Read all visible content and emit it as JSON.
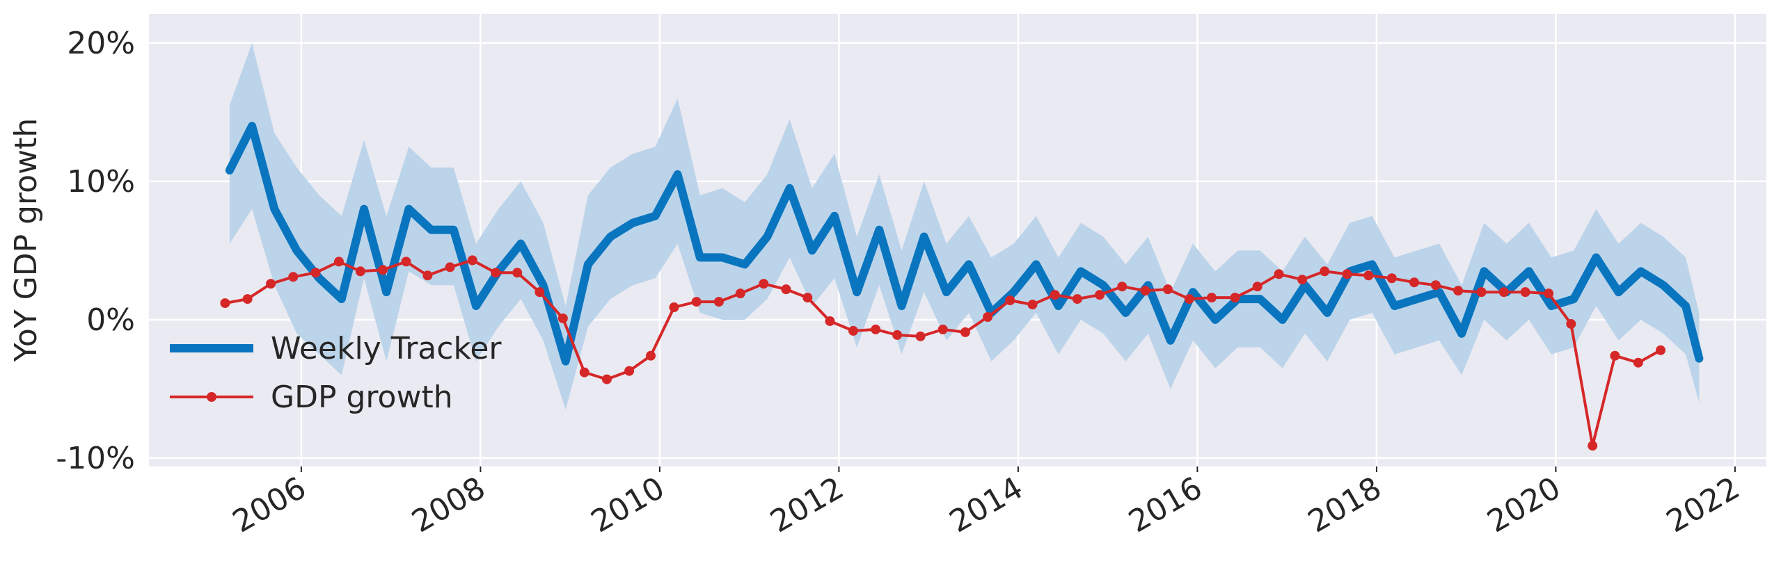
{
  "chart_data": {
    "type": "line",
    "ylabel": "YoY GDP growth",
    "xlim": [
      2004.3,
      2022.35
    ],
    "xticks": [
      2006,
      2008,
      2010,
      2012,
      2014,
      2016,
      2018,
      2020,
      2022
    ],
    "ylim": [
      -10.6,
      22.1
    ],
    "yticks": [
      {
        "value": -10,
        "label": "-10%"
      },
      {
        "value": 0,
        "label": "0%"
      },
      {
        "value": 10,
        "label": "10%"
      },
      {
        "value": 20,
        "label": "20%"
      }
    ],
    "grid": true,
    "legend_loc": "lower left",
    "band_color": "#bcd4ea",
    "series": [
      {
        "name": "Weekly Tracker",
        "color": "#0a75bf",
        "markers": false,
        "x": [
          2005.2,
          2005.45,
          2005.7,
          2005.95,
          2006.2,
          2006.45,
          2006.7,
          2006.95,
          2007.2,
          2007.45,
          2007.7,
          2007.95,
          2008.2,
          2008.45,
          2008.7,
          2008.95,
          2009.2,
          2009.45,
          2009.7,
          2009.95,
          2010.2,
          2010.45,
          2010.7,
          2010.95,
          2011.2,
          2011.45,
          2011.7,
          2011.95,
          2012.2,
          2012.45,
          2012.7,
          2012.95,
          2013.2,
          2013.45,
          2013.7,
          2013.95,
          2014.2,
          2014.45,
          2014.7,
          2014.95,
          2015.2,
          2015.45,
          2015.7,
          2015.95,
          2016.2,
          2016.45,
          2016.7,
          2016.95,
          2017.2,
          2017.45,
          2017.7,
          2017.95,
          2018.2,
          2018.45,
          2018.7,
          2018.95,
          2019.2,
          2019.45,
          2019.7,
          2019.95,
          2020.2,
          2020.45,
          2020.7,
          2020.95,
          2021.2,
          2021.45,
          2021.6
        ],
        "values": [
          10.8,
          14.0,
          8.0,
          5.0,
          3.0,
          1.5,
          8.0,
          2.0,
          8.0,
          6.5,
          6.5,
          1.0,
          3.5,
          5.5,
          2.5,
          -3.0,
          4.0,
          6.0,
          7.0,
          7.5,
          10.5,
          4.5,
          4.5,
          4.0,
          6.0,
          9.5,
          5.0,
          7.5,
          2.0,
          6.5,
          1.0,
          6.0,
          2.0,
          4.0,
          0.5,
          2.0,
          4.0,
          1.0,
          3.5,
          2.5,
          0.5,
          2.5,
          -1.5,
          2.0,
          0.0,
          1.5,
          1.5,
          0.0,
          2.5,
          0.5,
          3.5,
          4.0,
          1.0,
          1.5,
          2.0,
          -1.0,
          3.5,
          2.0,
          3.5,
          1.0,
          1.5,
          4.5,
          2.0,
          3.5,
          2.5,
          1.0,
          -2.8
        ],
        "band_lower": [
          5.5,
          8.0,
          2.5,
          -1.0,
          -2.5,
          -4.0,
          3.0,
          -3.0,
          3.5,
          2.5,
          2.5,
          -3.0,
          -0.5,
          1.5,
          -1.5,
          -6.5,
          -0.5,
          1.5,
          2.5,
          3.0,
          5.5,
          0.5,
          0.0,
          0.0,
          1.5,
          4.5,
          1.0,
          3.0,
          -2.0,
          2.5,
          -2.5,
          2.0,
          -1.5,
          0.5,
          -3.0,
          -1.5,
          0.5,
          -2.5,
          0.0,
          -1.0,
          -3.0,
          -1.0,
          -5.0,
          -1.5,
          -3.5,
          -2.0,
          -2.0,
          -3.5,
          -1.0,
          -3.0,
          0.0,
          0.5,
          -2.5,
          -2.0,
          -1.5,
          -4.0,
          0.0,
          -1.5,
          0.0,
          -2.5,
          -2.0,
          1.0,
          -1.5,
          0.0,
          -1.0,
          -2.5,
          -6.0
        ],
        "band_upper": [
          15.5,
          20.0,
          13.5,
          11.0,
          9.0,
          7.5,
          13.0,
          7.5,
          12.5,
          11.0,
          11.0,
          5.5,
          8.0,
          10.0,
          7.0,
          1.0,
          9.0,
          11.0,
          12.0,
          12.5,
          16.0,
          9.0,
          9.5,
          8.5,
          10.5,
          14.5,
          9.5,
          12.0,
          6.0,
          10.5,
          5.0,
          10.0,
          5.5,
          7.5,
          4.5,
          5.5,
          7.5,
          4.5,
          7.0,
          6.0,
          4.0,
          6.0,
          2.0,
          5.5,
          3.5,
          5.0,
          5.0,
          3.5,
          6.0,
          4.0,
          7.0,
          7.5,
          4.5,
          5.0,
          5.5,
          2.5,
          7.0,
          5.5,
          7.0,
          4.5,
          5.0,
          8.0,
          5.5,
          7.0,
          6.0,
          4.5,
          0.5
        ]
      },
      {
        "name": "GDP growth",
        "color": "#d62728",
        "markers": true,
        "x": [
          2005.15,
          2005.4,
          2005.66,
          2005.91,
          2006.16,
          2006.42,
          2006.66,
          2006.91,
          2007.17,
          2007.41,
          2007.66,
          2007.91,
          2008.17,
          2008.41,
          2008.66,
          2008.92,
          2009.16,
          2009.41,
          2009.66,
          2009.9,
          2010.16,
          2010.41,
          2010.66,
          2010.9,
          2011.16,
          2011.41,
          2011.65,
          2011.9,
          2012.16,
          2012.41,
          2012.65,
          2012.91,
          2013.16,
          2013.41,
          2013.66,
          2013.91,
          2014.16,
          2014.41,
          2014.66,
          2014.91,
          2015.16,
          2015.42,
          2015.67,
          2015.91,
          2016.16,
          2016.42,
          2016.67,
          2016.91,
          2017.17,
          2017.42,
          2017.67,
          2017.91,
          2018.17,
          2018.42,
          2018.66,
          2018.91,
          2019.17,
          2019.42,
          2019.66,
          2019.92,
          2020.17,
          2020.41,
          2020.66,
          2020.92,
          2021.17
        ],
        "values": [
          1.2,
          1.5,
          2.6,
          3.1,
          3.4,
          4.2,
          3.5,
          3.6,
          4.2,
          3.2,
          3.8,
          4.3,
          3.4,
          3.4,
          2.0,
          0.1,
          -3.8,
          -4.3,
          -3.7,
          -2.6,
          0.9,
          1.3,
          1.3,
          1.9,
          2.6,
          2.2,
          1.6,
          -0.1,
          -0.8,
          -0.7,
          -1.1,
          -1.2,
          -0.7,
          -0.9,
          0.2,
          1.4,
          1.1,
          1.8,
          1.5,
          1.8,
          2.4,
          2.1,
          2.2,
          1.5,
          1.6,
          1.6,
          2.4,
          3.3,
          2.9,
          3.5,
          3.3,
          3.2,
          3.0,
          2.7,
          2.5,
          2.1,
          2.0,
          2.0,
          2.0,
          1.9,
          -0.3,
          -9.1,
          -2.6,
          -3.1,
          -2.2
        ]
      }
    ]
  }
}
